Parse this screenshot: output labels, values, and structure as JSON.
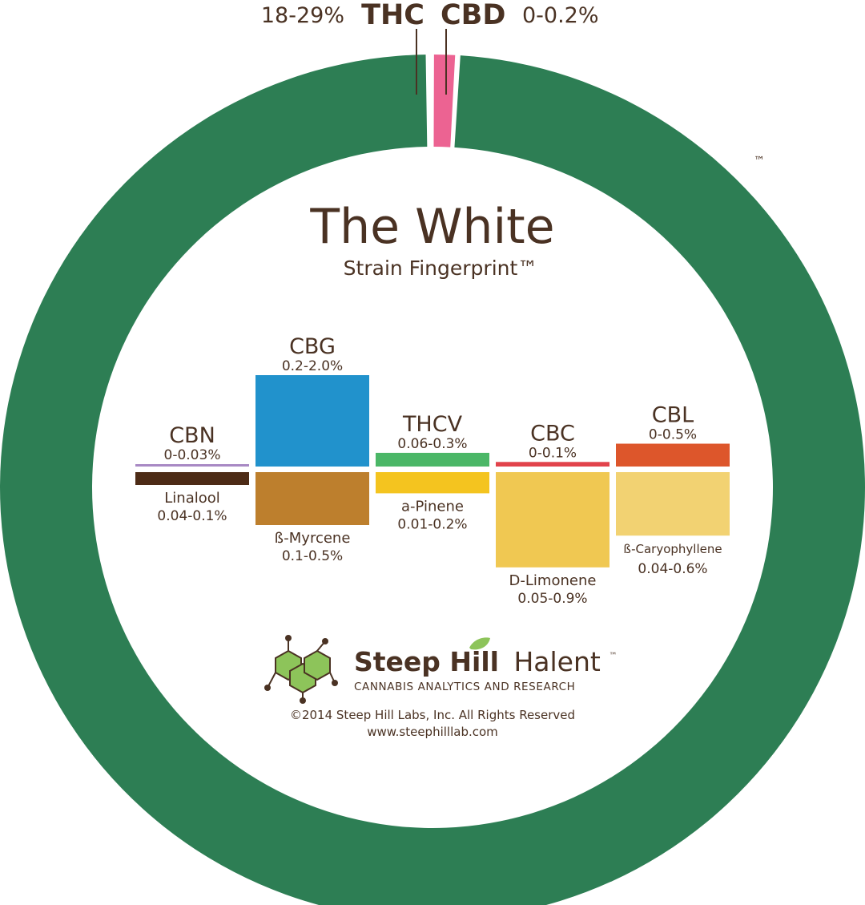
{
  "title": "The White",
  "subtitle": "Strain Fingerprint™",
  "trademark": "™",
  "colors": {
    "thc": "#2d7e54",
    "cbd": "#ec6392",
    "text": "#4a3223",
    "cbn": "#a889c4",
    "cbg": "#2192cc",
    "thcv": "#4bb767",
    "cbc": "#e2434b",
    "cbl": "#dd562b",
    "linalool": "#4d2b16",
    "myrcene": "#bd7f2d",
    "pinene": "#f4c41f",
    "limonene": "#f0c852",
    "caryophyllene": "#f2d272",
    "logo_green": "#8dc45a",
    "logo_dark": "#4a3223"
  },
  "chart_data": {
    "type": "bar",
    "ring": {
      "type": "pie",
      "slices": [
        {
          "name": "THC",
          "range": "18-29%",
          "low": 18,
          "high": 29
        },
        {
          "name": "CBD",
          "range": "0-0.2%",
          "low": 0,
          "high": 0.2
        }
      ]
    },
    "cannabinoids": [
      {
        "name": "CBN",
        "range": "0-0.03%",
        "low": 0,
        "high": 0.03
      },
      {
        "name": "CBG",
        "range": "0.2-2.0%",
        "low": 0.2,
        "high": 2.0
      },
      {
        "name": "THCV",
        "range": "0.06-0.3%",
        "low": 0.06,
        "high": 0.3
      },
      {
        "name": "CBC",
        "range": "0-0.1%",
        "low": 0,
        "high": 0.1
      },
      {
        "name": "CBL",
        "range": "0-0.5%",
        "low": 0,
        "high": 0.5
      }
    ],
    "terpenes": [
      {
        "name": "Linalool",
        "range": "0.04-0.1%",
        "low": 0.04,
        "high": 0.1
      },
      {
        "name": "ß-Myrcene",
        "range": "0.1-0.5%",
        "low": 0.1,
        "high": 0.5
      },
      {
        "name": "a-Pinene",
        "range": "0.01-0.2%",
        "low": 0.01,
        "high": 0.2
      },
      {
        "name": "D-Limonene",
        "range": "0.05-0.9%",
        "low": 0.05,
        "high": 0.9
      },
      {
        "name": "ß-Caryophyllene",
        "range": "0.04-0.6%",
        "low": 0.04,
        "high": 0.6
      }
    ]
  },
  "logo": {
    "brand_bold": "Steep Hill",
    "brand_light": "Halent",
    "brand_tm": "™",
    "tagline": "CANNABIS ANALYTICS AND RESEARCH"
  },
  "footer": {
    "copyright": "©2014 Steep Hill Labs, Inc. All Rights Reserved",
    "url": "www.steephilllab.com"
  }
}
